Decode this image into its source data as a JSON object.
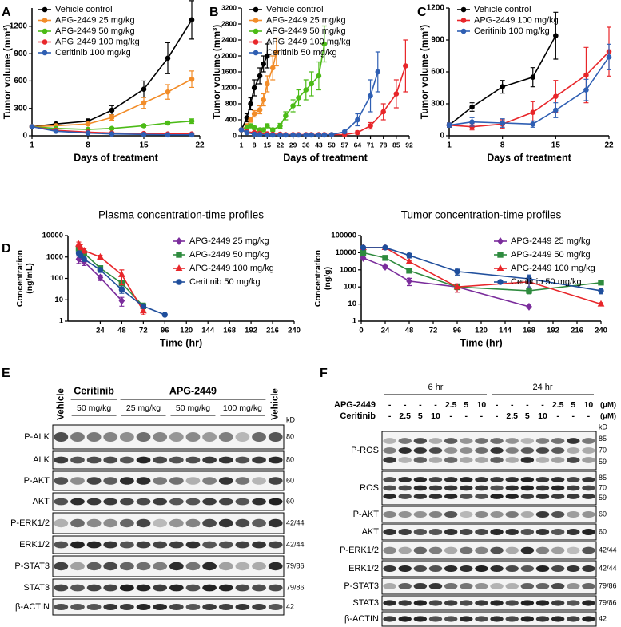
{
  "chart_data": [
    {
      "type": "line",
      "label": "A",
      "xlabel": "Days of treatment",
      "ylabel": "Tumor volume (mm³)",
      "xlim": [
        1,
        22
      ],
      "xticks": [
        1,
        8,
        15,
        22
      ],
      "ylim": [
        0,
        1400
      ],
      "yticks": [
        0,
        300,
        600,
        900,
        1200
      ],
      "legend": "upper left",
      "series": [
        {
          "name": "Vehicle control",
          "color": "#000000",
          "marker": "circle",
          "x": [
            1,
            4,
            8,
            11,
            15,
            18,
            21
          ],
          "values": [
            100,
            130,
            160,
            280,
            510,
            850,
            1270
          ],
          "errors": [
            10,
            15,
            25,
            50,
            90,
            170,
            210
          ]
        },
        {
          "name": "APG-2449 25 mg/kg",
          "color": "#f28c28",
          "marker": "circle",
          "x": [
            1,
            4,
            8,
            11,
            15,
            18,
            21
          ],
          "values": [
            100,
            110,
            130,
            200,
            360,
            480,
            620
          ],
          "errors": [
            10,
            10,
            15,
            30,
            60,
            80,
            90
          ]
        },
        {
          "name": "APG-2449 50 mg/kg",
          "color": "#4cbb17",
          "marker": "circle",
          "x": [
            1,
            4,
            8,
            11,
            15,
            18,
            21
          ],
          "values": [
            100,
            80,
            70,
            80,
            110,
            140,
            160
          ],
          "errors": [
            10,
            10,
            10,
            10,
            15,
            20,
            25
          ]
        },
        {
          "name": "APG-2449 100 mg/kg",
          "color": "#e8262a",
          "marker": "circle",
          "x": [
            1,
            4,
            8,
            11,
            15,
            18,
            21
          ],
          "values": [
            100,
            60,
            40,
            30,
            25,
            20,
            20
          ],
          "errors": [
            10,
            8,
            5,
            5,
            5,
            5,
            5
          ]
        },
        {
          "name": "Ceritinib 100 mg/kg",
          "color": "#2f5fb3",
          "marker": "circle",
          "x": [
            1,
            4,
            8,
            11,
            15,
            18,
            21
          ],
          "values": [
            100,
            50,
            30,
            20,
            15,
            10,
            10
          ],
          "errors": [
            10,
            5,
            5,
            5,
            5,
            5,
            5
          ]
        }
      ]
    },
    {
      "type": "line",
      "label": "B",
      "xlabel": "Days of treatment",
      "ylabel": "Tumor volume (mm³)",
      "xlim": [
        1,
        92
      ],
      "xticks": [
        1,
        8,
        15,
        22,
        29,
        36,
        43,
        50,
        57,
        64,
        71,
        78,
        85,
        92
      ],
      "ylim": [
        0,
        3200
      ],
      "yticks": [
        0,
        400,
        800,
        1200,
        1600,
        2000,
        2400,
        2800,
        3200
      ],
      "legend": "upper left",
      "series": [
        {
          "name": "Vehicle control",
          "color": "#000000",
          "marker": "circle",
          "x": [
            1,
            4,
            6,
            8,
            11,
            13,
            15
          ],
          "values": [
            150,
            450,
            800,
            1200,
            1500,
            1800,
            2000
          ],
          "errors": [
            30,
            100,
            150,
            200,
            200,
            200,
            300
          ]
        },
        {
          "name": "APG-2449 25 mg/kg",
          "color": "#f28c28",
          "marker": "circle",
          "x": [
            1,
            4,
            6,
            8,
            11,
            13,
            15,
            18,
            20
          ],
          "values": [
            150,
            250,
            400,
            550,
            650,
            900,
            1300,
            1700,
            2100
          ],
          "errors": [
            30,
            50,
            60,
            80,
            100,
            150,
            200,
            300,
            350
          ]
        },
        {
          "name": "APG-2449 50 mg/kg",
          "color": "#4cbb17",
          "marker": "circle",
          "x": [
            1,
            4,
            6,
            8,
            11,
            13,
            15,
            18,
            22,
            25,
            29,
            32,
            36,
            39,
            43,
            46
          ],
          "values": [
            150,
            200,
            250,
            200,
            150,
            150,
            250,
            150,
            250,
            500,
            750,
            950,
            1150,
            1300,
            1500,
            2300
          ],
          "errors": [
            30,
            50,
            50,
            40,
            40,
            40,
            50,
            40,
            60,
            100,
            150,
            200,
            250,
            300,
            350,
            450
          ]
        },
        {
          "name": "APG-2449 100 mg/kg",
          "color": "#e8262a",
          "marker": "circle",
          "x": [
            1,
            4,
            8,
            11,
            15,
            18,
            22,
            25,
            29,
            32,
            36,
            39,
            43,
            46,
            50,
            57,
            64,
            71,
            78,
            85,
            90
          ],
          "values": [
            150,
            100,
            80,
            60,
            50,
            40,
            40,
            30,
            30,
            30,
            30,
            30,
            30,
            30,
            30,
            30,
            80,
            250,
            600,
            1050,
            1750
          ],
          "errors": [
            20,
            20,
            10,
            10,
            10,
            10,
            10,
            10,
            10,
            10,
            10,
            10,
            10,
            10,
            10,
            10,
            40,
            80,
            200,
            350,
            650
          ]
        },
        {
          "name": "Ceritinib 50 mg/kg",
          "color": "#2f5fb3",
          "marker": "circle",
          "x": [
            1,
            4,
            8,
            11,
            15,
            18,
            22,
            25,
            29,
            32,
            36,
            39,
            43,
            46,
            50,
            57,
            64,
            71,
            75
          ],
          "values": [
            150,
            80,
            40,
            30,
            20,
            20,
            20,
            20,
            20,
            20,
            20,
            20,
            20,
            20,
            30,
            100,
            400,
            1000,
            1600
          ],
          "errors": [
            20,
            10,
            10,
            10,
            10,
            10,
            10,
            10,
            10,
            10,
            10,
            10,
            10,
            10,
            10,
            30,
            150,
            400,
            500
          ]
        }
      ]
    },
    {
      "type": "line",
      "label": "C",
      "xlabel": "Days of treatment",
      "ylabel": "Tumor volume (mm³)",
      "xlim": [
        1,
        22
      ],
      "xticks": [
        1,
        8,
        15,
        22
      ],
      "ylim": [
        0,
        1200
      ],
      "yticks": [
        0,
        300,
        600,
        900,
        1200
      ],
      "legend": "upper left",
      "series": [
        {
          "name": "Vehicle control",
          "color": "#000000",
          "marker": "circle",
          "x": [
            1,
            4,
            8,
            12,
            15
          ],
          "values": [
            100,
            270,
            460,
            550,
            940
          ],
          "errors": [
            20,
            40,
            60,
            90,
            220
          ]
        },
        {
          "name": "APG-2449 100 mg/kg",
          "color": "#e8262a",
          "marker": "circle",
          "x": [
            1,
            4,
            8,
            12,
            15,
            19,
            22
          ],
          "values": [
            100,
            85,
            110,
            220,
            370,
            570,
            790
          ],
          "errors": [
            20,
            30,
            40,
            100,
            150,
            260,
            230
          ]
        },
        {
          "name": "Ceritinib 100 mg/kg",
          "color": "#2f5fb3",
          "marker": "circle",
          "x": [
            1,
            4,
            8,
            12,
            15,
            19,
            22
          ],
          "values": [
            100,
            130,
            120,
            110,
            240,
            430,
            740
          ],
          "errors": [
            20,
            40,
            40,
            30,
            70,
            100,
            120
          ]
        }
      ]
    },
    {
      "type": "line",
      "label": "D",
      "title": "Plasma concentration-time profiles",
      "xlabel": "Time (hr)",
      "ylabel": [
        "Concentration",
        "(ng/mL)"
      ],
      "log_y": true,
      "xlim": [
        -12,
        240
      ],
      "xticks": [
        24,
        48,
        72,
        96,
        120,
        144,
        168,
        192,
        216,
        240
      ],
      "ylim": [
        1,
        10000
      ],
      "yticks": [
        1,
        10,
        100,
        1000,
        10000
      ],
      "legend": "upper right",
      "series": [
        {
          "name": "APG-2449 25 mg/kg",
          "color": "#7b2d9c",
          "marker": "diamond",
          "x": [
            0,
            2,
            6,
            24,
            48
          ],
          "values": [
            800,
            1000,
            600,
            110,
            9
          ],
          "errors": [
            300,
            400,
            200,
            30,
            4
          ]
        },
        {
          "name": "APG-2449 50 mg/kg",
          "color": "#2e8b3e",
          "marker": "square",
          "x": [
            0,
            2,
            6,
            24,
            48,
            72
          ],
          "values": [
            2500,
            2000,
            1500,
            300,
            60,
            5
          ],
          "errors": [
            500,
            400,
            300,
            60,
            20,
            2
          ]
        },
        {
          "name": "APG-2449 100 mg/kg",
          "color": "#e8262a",
          "marker": "triangle",
          "x": [
            0,
            2,
            6,
            24,
            48,
            72
          ],
          "values": [
            4000,
            3000,
            2000,
            1000,
            150,
            3
          ],
          "errors": [
            1000,
            800,
            500,
            200,
            100,
            1
          ]
        },
        {
          "name": "Ceritinib 50 mg/kg",
          "color": "#1f4e9c",
          "marker": "circle",
          "x": [
            0,
            2,
            6,
            24,
            48,
            72,
            96
          ],
          "values": [
            1500,
            1200,
            800,
            250,
            30,
            5,
            2
          ],
          "errors": [
            300,
            200,
            150,
            60,
            10,
            1,
            0
          ]
        }
      ]
    },
    {
      "type": "line",
      "title": "Tumor concentration-time profiles",
      "xlabel": "Time (hr)",
      "ylabel": [
        "Concentration",
        "(ng/g)"
      ],
      "log_y": true,
      "xlim": [
        0,
        240
      ],
      "xticks": [
        0,
        24,
        48,
        72,
        96,
        120,
        144,
        168,
        192,
        216,
        240
      ],
      "ylim": [
        1,
        100000
      ],
      "yticks": [
        1,
        10,
        100,
        1000,
        10000,
        100000
      ],
      "legend": "upper right",
      "series": [
        {
          "name": "APG-2449 25 mg/kg",
          "color": "#7b2d9c",
          "marker": "diamond",
          "x": [
            2,
            24,
            48,
            96,
            168
          ],
          "values": [
            5000,
            1500,
            220,
            100,
            7
          ],
          "errors": [
            500,
            300,
            100,
            50,
            1
          ]
        },
        {
          "name": "APG-2449 50 mg/kg",
          "color": "#2e8b3e",
          "marker": "square",
          "x": [
            2,
            24,
            48,
            96,
            168,
            240
          ],
          "values": [
            10000,
            5000,
            900,
            100,
            60,
            180
          ],
          "errors": [
            2000,
            1000,
            200,
            30,
            20,
            20
          ]
        },
        {
          "name": "APG-2449 100 mg/kg",
          "color": "#e8262a",
          "marker": "triangle",
          "x": [
            2,
            24,
            48,
            96,
            168,
            240
          ],
          "values": [
            20000,
            20000,
            3000,
            100,
            200,
            10
          ],
          "errors": [
            3000,
            3000,
            500,
            50,
            100,
            2
          ]
        },
        {
          "name": "Ceritinib 50 mg/kg",
          "color": "#1f4e9c",
          "marker": "circle",
          "x": [
            2,
            24,
            48,
            96,
            168,
            240
          ],
          "values": [
            20000,
            20000,
            7000,
            800,
            300,
            60
          ],
          "errors": [
            3000,
            3000,
            2000,
            300,
            200,
            20
          ]
        }
      ]
    }
  ],
  "blot_e": {
    "label": "E",
    "vehicle": "Vehicle",
    "groups": [
      {
        "name": "Ceritinib",
        "doses": [
          "50 mg/kg"
        ]
      },
      {
        "name": "APG-2449",
        "doses": [
          "25 mg/kg",
          "50 mg/kg",
          "100 mg/kg"
        ]
      }
    ],
    "kd_unit": "kD",
    "rows": [
      {
        "label": "P-ALK",
        "kd": 80
      },
      {
        "label": "ALK",
        "kd": 80
      },
      {
        "label": "P-AKT",
        "kd": 60
      },
      {
        "label": "AKT",
        "kd": 60
      },
      {
        "label": "P-ERK1/2",
        "kd": "42/44"
      },
      {
        "label": "ERK1/2",
        "kd": "42/44"
      },
      {
        "label": "P-STAT3",
        "kd": "79/86"
      },
      {
        "label": "STAT3",
        "kd": "79/86"
      },
      {
        "label": "β-ACTIN",
        "kd": 42
      }
    ]
  },
  "blot_f": {
    "label": "F",
    "times": [
      "6 hr",
      "24 hr"
    ],
    "treatments": [
      {
        "name": "APG-2449",
        "doses": [
          "-",
          "-",
          "-",
          "-",
          2.5,
          5,
          10
        ]
      },
      {
        "name": "Ceritinib",
        "doses": [
          "-",
          2.5,
          5,
          10,
          "-",
          "-",
          "-"
        ]
      }
    ],
    "unit": "(μM)",
    "kd_unit": "kD",
    "rows": [
      {
        "label": "P-ROS",
        "kd": [
          85,
          70,
          59
        ]
      },
      {
        "label": "ROS",
        "kd": [
          85,
          70,
          59
        ]
      },
      {
        "label": "P-AKT",
        "kd": [
          60
        ]
      },
      {
        "label": "AKT",
        "kd": [
          60
        ]
      },
      {
        "label": "P-ERK1/2",
        "kd": [
          "42/44"
        ]
      },
      {
        "label": "ERK1/2",
        "kd": [
          "42/44"
        ]
      },
      {
        "label": "P-STAT3",
        "kd": [
          "79/86"
        ]
      },
      {
        "label": "STAT3",
        "kd": [
          "79/86"
        ]
      },
      {
        "label": "β-ACTIN",
        "kd": [
          42
        ]
      }
    ]
  }
}
